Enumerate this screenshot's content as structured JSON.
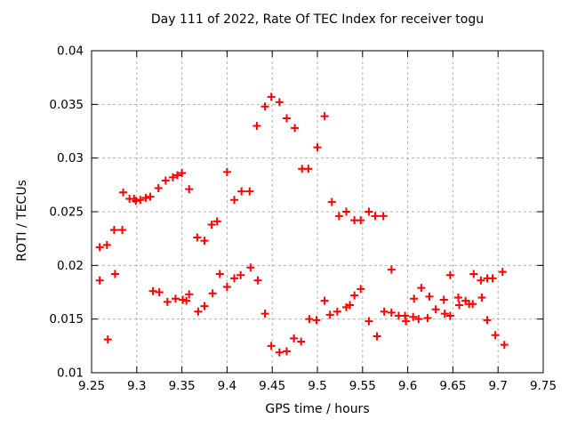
{
  "window": {
    "background": "#ffffff"
  },
  "chart_data": {
    "type": "scatter",
    "title": "Day 111 of 2022, Rate Of TEC Index for receiver togu",
    "xlabel": "GPS time / hours",
    "ylabel": "ROTI / TECUs",
    "xlim": [
      9.25,
      9.75
    ],
    "ylim": [
      0.01,
      0.04
    ],
    "xticks": [
      9.25,
      9.3,
      9.35,
      9.4,
      9.45,
      9.5,
      9.55,
      9.6,
      9.65,
      9.7,
      9.75
    ],
    "xtick_labels": [
      "9.25",
      "9.3",
      "9.35",
      "9.4",
      "9.45",
      "9.5",
      "9.55",
      "9.6",
      "9.65",
      "9.7",
      "9.75"
    ],
    "yticks": [
      0.01,
      0.015,
      0.02,
      0.025,
      0.03,
      0.035,
      0.04
    ],
    "ytick_labels": [
      "0.01",
      "0.015",
      "0.02",
      "0.025",
      "0.03",
      "0.035",
      "0.04"
    ],
    "grid": true,
    "legend": "none",
    "marker": "plus",
    "marker_color": "#ff0000",
    "grid_color": "#b0b0b0",
    "axis_color": "#000000",
    "series_name": "ROTI",
    "points": [
      [
        9.259,
        0.0186
      ],
      [
        9.259,
        0.0217
      ],
      [
        9.267,
        0.0219
      ],
      [
        9.268,
        0.0131
      ],
      [
        9.275,
        0.0233
      ],
      [
        9.276,
        0.0192
      ],
      [
        9.284,
        0.0233
      ],
      [
        9.285,
        0.0268
      ],
      [
        9.292,
        0.0262
      ],
      [
        9.297,
        0.0262
      ],
      [
        9.299,
        0.026
      ],
      [
        9.304,
        0.0261
      ],
      [
        9.31,
        0.0263
      ],
      [
        9.315,
        0.0264
      ],
      [
        9.318,
        0.0176
      ],
      [
        9.324,
        0.0272
      ],
      [
        9.325,
        0.0175
      ],
      [
        9.332,
        0.0279
      ],
      [
        9.334,
        0.0166
      ],
      [
        9.34,
        0.0282
      ],
      [
        9.343,
        0.0169
      ],
      [
        9.345,
        0.0284
      ],
      [
        9.35,
        0.0286
      ],
      [
        9.351,
        0.0168
      ],
      [
        9.355,
        0.0167
      ],
      [
        9.358,
        0.0173
      ],
      [
        9.358,
        0.0271
      ],
      [
        9.367,
        0.0226
      ],
      [
        9.368,
        0.0157
      ],
      [
        9.375,
        0.0162
      ],
      [
        9.375,
        0.0223
      ],
      [
        9.383,
        0.0238
      ],
      [
        9.384,
        0.0174
      ],
      [
        9.389,
        0.0241
      ],
      [
        9.392,
        0.0192
      ],
      [
        9.4,
        0.018
      ],
      [
        9.4,
        0.0287
      ],
      [
        9.408,
        0.0188
      ],
      [
        9.408,
        0.0261
      ],
      [
        9.415,
        0.0191
      ],
      [
        9.416,
        0.0269
      ],
      [
        9.425,
        0.0269
      ],
      [
        9.426,
        0.0198
      ],
      [
        9.433,
        0.033
      ],
      [
        9.434,
        0.0186
      ],
      [
        9.442,
        0.0155
      ],
      [
        9.442,
        0.0348
      ],
      [
        9.449,
        0.0357
      ],
      [
        9.449,
        0.0125
      ],
      [
        9.458,
        0.0119
      ],
      [
        9.458,
        0.0352
      ],
      [
        9.466,
        0.012
      ],
      [
        9.466,
        0.0337
      ],
      [
        9.474,
        0.0132
      ],
      [
        9.475,
        0.0328
      ],
      [
        9.482,
        0.0129
      ],
      [
        9.483,
        0.029
      ],
      [
        9.49,
        0.029
      ],
      [
        9.491,
        0.015
      ],
      [
        9.499,
        0.0149
      ],
      [
        9.5,
        0.031
      ],
      [
        9.508,
        0.0167
      ],
      [
        9.508,
        0.0339
      ],
      [
        9.514,
        0.0154
      ],
      [
        9.516,
        0.0259
      ],
      [
        9.522,
        0.0157
      ],
      [
        9.524,
        0.0246
      ],
      [
        9.532,
        0.0161
      ],
      [
        9.532,
        0.025
      ],
      [
        9.536,
        0.0163
      ],
      [
        9.541,
        0.0172
      ],
      [
        9.541,
        0.0242
      ],
      [
        9.548,
        0.0178
      ],
      [
        9.548,
        0.0242
      ],
      [
        9.557,
        0.0148
      ],
      [
        9.557,
        0.025
      ],
      [
        9.564,
        0.0246
      ],
      [
        9.566,
        0.0134
      ],
      [
        9.573,
        0.0246
      ],
      [
        9.574,
        0.0157
      ],
      [
        9.582,
        0.0156
      ],
      [
        9.582,
        0.0196
      ],
      [
        9.59,
        0.0153
      ],
      [
        9.597,
        0.0153
      ],
      [
        9.598,
        0.0148
      ],
      [
        9.606,
        0.0152
      ],
      [
        9.607,
        0.0169
      ],
      [
        9.612,
        0.015
      ],
      [
        9.615,
        0.0179
      ],
      [
        9.622,
        0.0151
      ],
      [
        9.624,
        0.0171
      ],
      [
        9.631,
        0.0159
      ],
      [
        9.64,
        0.0168
      ],
      [
        9.641,
        0.0155
      ],
      [
        9.647,
        0.0153
      ],
      [
        9.647,
        0.0191
      ],
      [
        9.656,
        0.017
      ],
      [
        9.657,
        0.0163
      ],
      [
        9.664,
        0.0167
      ],
      [
        9.668,
        0.0164
      ],
      [
        9.672,
        0.0164
      ],
      [
        9.673,
        0.0192
      ],
      [
        9.681,
        0.0186
      ],
      [
        9.682,
        0.017
      ],
      [
        9.688,
        0.0149
      ],
      [
        9.688,
        0.0188
      ],
      [
        9.694,
        0.0188
      ],
      [
        9.697,
        0.0135
      ],
      [
        9.705,
        0.0194
      ],
      [
        9.707,
        0.0126
      ]
    ]
  }
}
